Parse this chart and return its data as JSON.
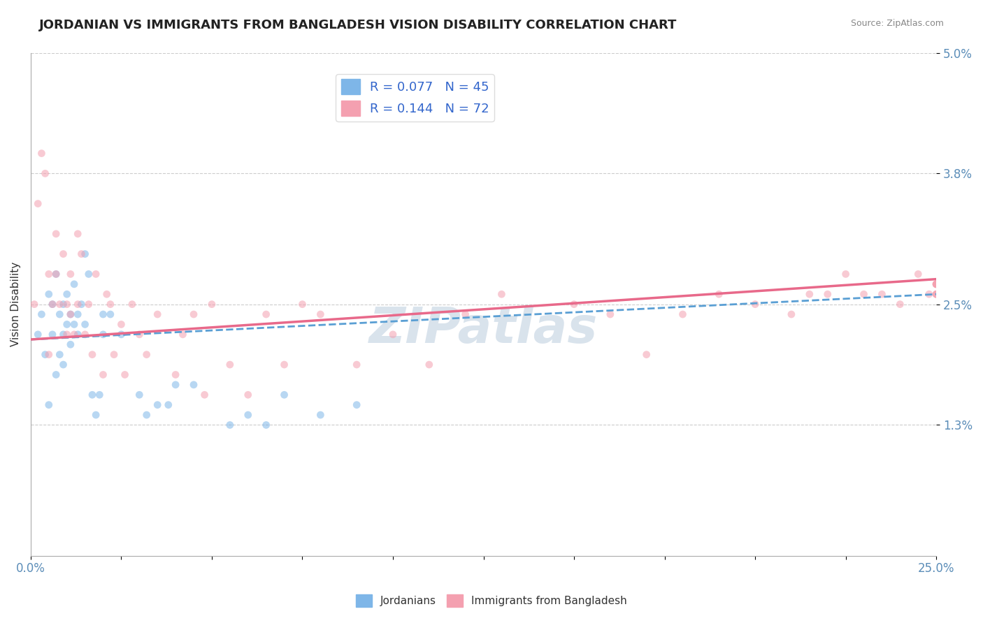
{
  "title": "JORDANIAN VS IMMIGRANTS FROM BANGLADESH VISION DISABILITY CORRELATION CHART",
  "source_text": "Source: ZipAtlas.com",
  "ylabel": "Vision Disability",
  "xlabel": "",
  "xlim": [
    0.0,
    0.25
  ],
  "ylim": [
    0.0,
    0.05
  ],
  "ytick_positions": [
    0.013,
    0.025,
    0.038,
    0.05
  ],
  "ytick_labels": [
    "1.3%",
    "2.5%",
    "3.8%",
    "5.0%"
  ],
  "xtick_positions": [
    0.0,
    0.025,
    0.05,
    0.075,
    0.1,
    0.125,
    0.15,
    0.175,
    0.2,
    0.225,
    0.25
  ],
  "xtick_labels": [
    "0.0%",
    "",
    "",
    "",
    "",
    "",
    "",
    "",
    "",
    "",
    "25.0%"
  ],
  "legend_entries": [
    {
      "label": "R = 0.077   N = 45",
      "color": "#7EB6E8"
    },
    {
      "label": "R = 0.144   N = 72",
      "color": "#F4A0B0"
    }
  ],
  "jordanian_scatter_x": [
    0.002,
    0.003,
    0.004,
    0.005,
    0.005,
    0.006,
    0.006,
    0.007,
    0.007,
    0.008,
    0.008,
    0.009,
    0.009,
    0.009,
    0.01,
    0.01,
    0.011,
    0.011,
    0.012,
    0.012,
    0.013,
    0.013,
    0.014,
    0.015,
    0.015,
    0.016,
    0.017,
    0.018,
    0.019,
    0.02,
    0.02,
    0.022,
    0.025,
    0.03,
    0.032,
    0.035,
    0.038,
    0.04,
    0.045,
    0.055,
    0.06,
    0.065,
    0.07,
    0.08,
    0.09
  ],
  "jordanian_scatter_y": [
    0.022,
    0.024,
    0.02,
    0.026,
    0.015,
    0.025,
    0.022,
    0.028,
    0.018,
    0.024,
    0.02,
    0.025,
    0.022,
    0.019,
    0.023,
    0.026,
    0.024,
    0.021,
    0.023,
    0.027,
    0.024,
    0.022,
    0.025,
    0.023,
    0.03,
    0.028,
    0.016,
    0.014,
    0.016,
    0.024,
    0.022,
    0.024,
    0.022,
    0.016,
    0.014,
    0.015,
    0.015,
    0.017,
    0.017,
    0.013,
    0.014,
    0.013,
    0.016,
    0.014,
    0.015
  ],
  "bangladesh_scatter_x": [
    0.001,
    0.002,
    0.003,
    0.004,
    0.005,
    0.005,
    0.006,
    0.007,
    0.007,
    0.008,
    0.009,
    0.01,
    0.01,
    0.011,
    0.011,
    0.012,
    0.013,
    0.013,
    0.014,
    0.015,
    0.016,
    0.017,
    0.018,
    0.02,
    0.021,
    0.022,
    0.023,
    0.025,
    0.026,
    0.028,
    0.03,
    0.032,
    0.035,
    0.04,
    0.042,
    0.045,
    0.048,
    0.05,
    0.055,
    0.06,
    0.065,
    0.07,
    0.075,
    0.08,
    0.09,
    0.1,
    0.11,
    0.12,
    0.13,
    0.15,
    0.16,
    0.17,
    0.18,
    0.19,
    0.2,
    0.21,
    0.215,
    0.22,
    0.225,
    0.23,
    0.235,
    0.24,
    0.245,
    0.248,
    0.25,
    0.25,
    0.25,
    0.25,
    0.25,
    0.25,
    0.25,
    0.25
  ],
  "bangladesh_scatter_y": [
    0.025,
    0.035,
    0.04,
    0.038,
    0.02,
    0.028,
    0.025,
    0.032,
    0.028,
    0.025,
    0.03,
    0.025,
    0.022,
    0.028,
    0.024,
    0.022,
    0.032,
    0.025,
    0.03,
    0.022,
    0.025,
    0.02,
    0.028,
    0.018,
    0.026,
    0.025,
    0.02,
    0.023,
    0.018,
    0.025,
    0.022,
    0.02,
    0.024,
    0.018,
    0.022,
    0.024,
    0.016,
    0.025,
    0.019,
    0.016,
    0.024,
    0.019,
    0.025,
    0.024,
    0.019,
    0.022,
    0.019,
    0.024,
    0.026,
    0.025,
    0.024,
    0.02,
    0.024,
    0.026,
    0.025,
    0.024,
    0.026,
    0.026,
    0.028,
    0.026,
    0.026,
    0.025,
    0.028,
    0.026,
    0.027,
    0.027,
    0.026,
    0.026,
    0.026,
    0.027,
    0.027,
    0.027
  ],
  "jordan_line_x": [
    0.0,
    0.25
  ],
  "jordan_line_y": [
    0.0215,
    0.026
  ],
  "bangladesh_line_x": [
    0.0,
    0.25
  ],
  "bangladesh_line_y": [
    0.0215,
    0.0275
  ],
  "scatter_alpha": 0.55,
  "scatter_size": 60,
  "jordan_color": "#7EB6E8",
  "bangladesh_color": "#F4A0B0",
  "jordan_line_color": "#5A9FD4",
  "bangladesh_line_color": "#E8698A",
  "background_color": "#FFFFFF",
  "grid_color": "#CCCCCC",
  "title_fontsize": 13,
  "axis_label_fontsize": 11,
  "tick_label_color": "#5B8DB8",
  "watermark_text": "ZIPatlas",
  "watermark_color": "#D0DCE8",
  "watermark_fontsize": 52
}
